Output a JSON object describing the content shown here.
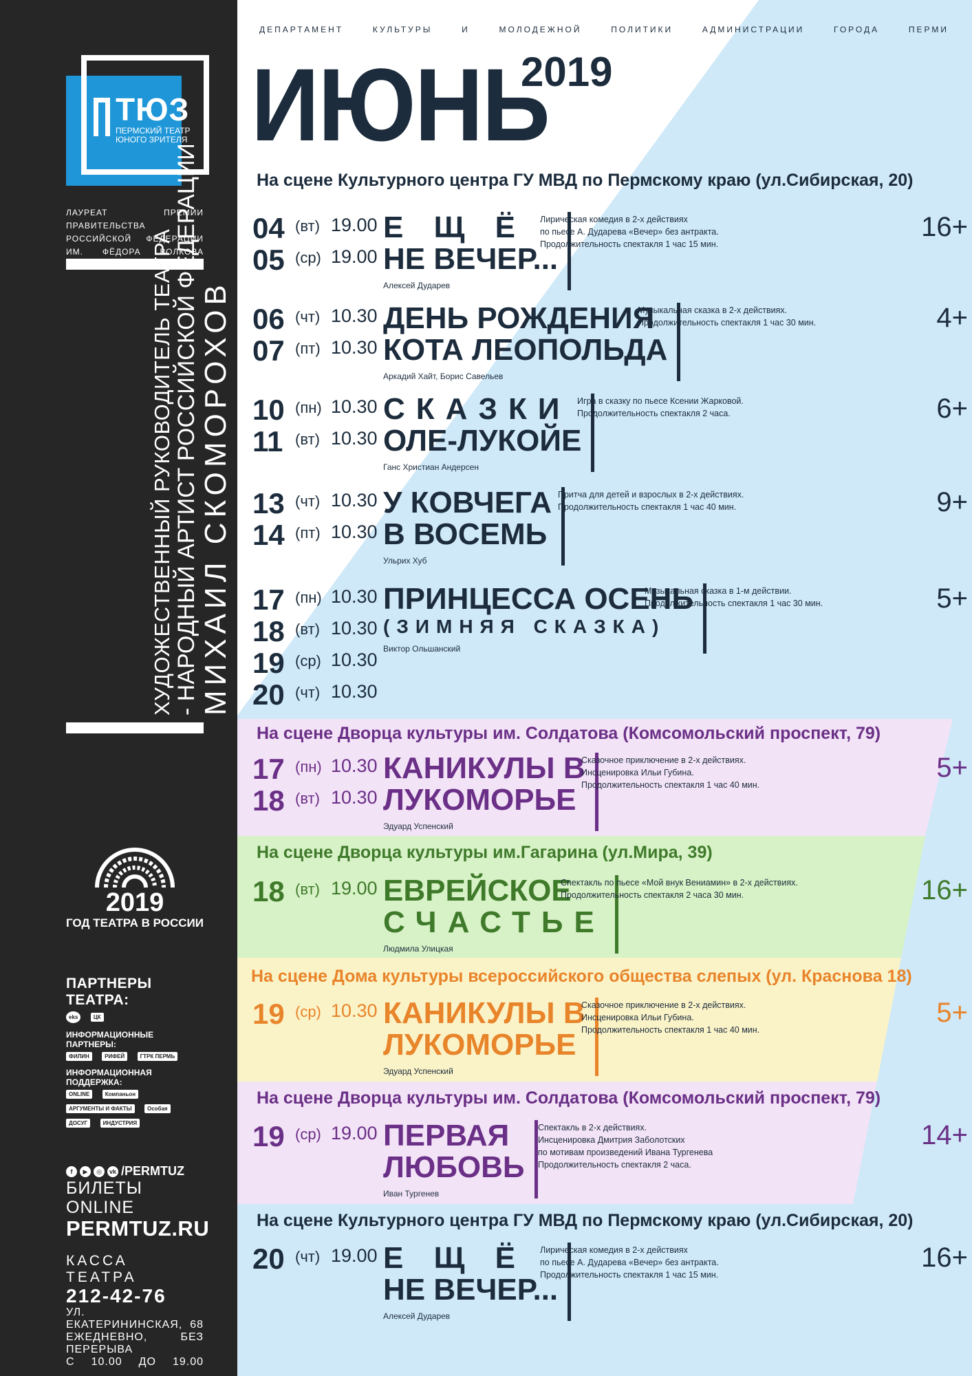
{
  "sidebar": {
    "logo": {
      "name": "ТЮЗ",
      "subtitle": "ПЕРМСКИЙ ТЕАТР ЮНОГО ЗРИТЕЛЯ"
    },
    "laureate": "Лауреат премии правительства Российской Федерации им. Фёдора Волкова",
    "director_line1": "Художественный руководитель театра",
    "director_line2": "- народный артист Российской Федерации",
    "director_name": "Михаил Скоморохов",
    "theatre_year": {
      "year": "2019",
      "text": "ГОД ТЕАТРА В РОССИИ"
    },
    "partners_heading": "ПАРТНЕРЫ ТЕАТРА:",
    "partners": [
      "eks",
      "ЦК"
    ],
    "info_partners_heading": "ИНФОРМАЦИОННЫЕ ПАРТНЕРЫ:",
    "info_partners": [
      "ФИЛИН",
      "РИФЕЙ",
      "ГТРК ПЕРМЬ"
    ],
    "info_support_heading": "ИНФОРМАЦИОННАЯ ПОДДЕРЖКА:",
    "info_support": [
      "ONLINE",
      "Компаньон",
      "АРГУМЕНТЫ И ФАКТЫ",
      "Особая",
      "ДОСУГ",
      "ИНДУСТРИЯ"
    ],
    "social_handle": "/PERMTUZ",
    "tickets": "БИЛЕТЫ ONLINE",
    "site": "PERMTUZ.RU",
    "kassa": "КАССА ТЕАТРА",
    "phone": "212-42-76",
    "address": "ул. Екатерининская, 68",
    "hours1": "ежедневно, без перерыва",
    "hours2": "с 10.00 до 19.00"
  },
  "header": {
    "department": "Департамент культуры и молодежной политики администрации города Перми",
    "month": "ИЮНЬ",
    "year": "2019"
  },
  "colors": {
    "navy": "#1c2c3c",
    "sky": "#cfe9f8",
    "purple": "#6a2f86",
    "green": "#3f7a2b",
    "orange": "#e8842a",
    "lilac_bg": "#f3e3f7",
    "green_bg": "#d7f2c6",
    "yellow_bg": "#fbf3c8"
  },
  "sections": [
    {
      "venue": "На сцене Культурного центра ГУ МВД по Пермскому краю (ул.Сибирская, 20)",
      "shows": [
        {
          "dates": [
            [
              "04",
              "(вт)",
              "19.00"
            ],
            [
              "05",
              "(ср)",
              "19.00"
            ]
          ],
          "title": [
            "Е Щ Ё",
            "НЕ ВЕЧЕР..."
          ],
          "author": "Алексей Дударев",
          "desc": [
            "Лирическая комедия в 2-х действиях",
            "по пьесе А. Дударева «Вечер» без антракта.",
            "Продолжительность спектакля 1 час 15 мин."
          ],
          "age": "16+"
        },
        {
          "dates": [
            [
              "06",
              "(чт)",
              "10.30"
            ],
            [
              "07",
              "(пт)",
              "10.30"
            ]
          ],
          "title": [
            "ДЕНЬ РОЖДЕНИЯ",
            "КОТА ЛЕОПОЛЬДА"
          ],
          "author": "Аркадий Хайт, Борис Савельев",
          "desc": [
            "Музыкальная сказка в 2-х действиях.",
            "Продолжительность спектакля 1 час 30 мин."
          ],
          "age": "4+"
        },
        {
          "dates": [
            [
              "10",
              "(пн)",
              "10.30"
            ],
            [
              "11",
              "(вт)",
              "10.30"
            ]
          ],
          "title": [
            "СКАЗКИ",
            "ОЛЕ-ЛУКОЙЕ"
          ],
          "author": "Ганс Христиан Андерсен",
          "desc": [
            "Игра в сказку по пьесе Ксении Жарковой.",
            "Продолжительность спектакля 2 часа."
          ],
          "age": "6+"
        },
        {
          "dates": [
            [
              "13",
              "(чт)",
              "10.30"
            ],
            [
              "14",
              "(пт)",
              "10.30"
            ]
          ],
          "title": [
            "У КОВЧЕГА",
            "В ВОСЕМЬ"
          ],
          "author": "Ульрих Хуб",
          "desc": [
            "Притча для детей и взрослых в 2-х действиях.",
            "Продолжительность спектакля 1 час 40 мин."
          ],
          "age": "9+"
        },
        {
          "dates": [
            [
              "17",
              "(пн)",
              "10.30"
            ],
            [
              "18",
              "(вт)",
              "10.30"
            ],
            [
              "19",
              "(ср)",
              "10.30"
            ],
            [
              "20",
              "(чт)",
              "10.30"
            ]
          ],
          "title": [
            "ПРИНЦЕССА ОСЕНЬ",
            "(ЗИМНЯЯ СКАЗКА)"
          ],
          "author": "Виктор Ольшанский",
          "desc": [
            "Музыкальная сказка в 1-м действии.",
            "Продолжительность спектакля 1 час 30 мин."
          ],
          "age": "5+"
        }
      ]
    },
    {
      "venue": "На сцене Дворца культуры им. Солдатова (Комсомольский проспект, 79)",
      "shows": [
        {
          "dates": [
            [
              "17",
              "(пн)",
              "10.30"
            ],
            [
              "18",
              "(вт)",
              "10.30"
            ]
          ],
          "title": [
            "КАНИКУЛЫ В",
            "ЛУКОМОРЬЕ"
          ],
          "author": "Эдуард Успенский",
          "desc": [
            "Сказочное приключение в 2-х действиях.",
            "Инсценировка Ильи Губина.",
            "Продолжительность спектакля 1 час 40 мин."
          ],
          "age": "5+"
        }
      ]
    },
    {
      "venue": "На сцене Дворца культуры им.Гагарина (ул.Мира, 39)",
      "shows": [
        {
          "dates": [
            [
              "18",
              "(вт)",
              "19.00"
            ]
          ],
          "title": [
            "ЕВРЕЙСКОЕ",
            "СЧАСТЬЕ"
          ],
          "author": "Людмила Улицкая",
          "desc": [
            "Спектакль по пьесе «Мой внук Вениамин» в 2-х действиях.",
            "Продолжительность спектакля 2 часа 30 мин."
          ],
          "age": "16+"
        }
      ]
    },
    {
      "venue": "На сцене Дома культуры всероссийского общества слепых (ул. Краснова 18)",
      "shows": [
        {
          "dates": [
            [
              "19",
              "(ср)",
              "10.30"
            ]
          ],
          "title": [
            "КАНИКУЛЫ В",
            "ЛУКОМОРЬЕ"
          ],
          "author": "Эдуард Успенский",
          "desc": [
            "Сказочное приключение в 2-х действиях.",
            "Инсценировка Ильи Губина.",
            "Продолжительность спектакля 1 час 40 мин."
          ],
          "age": "5+"
        }
      ]
    },
    {
      "venue": "На сцене Дворца культуры им. Солдатова (Комсомольский проспект, 79)",
      "shows": [
        {
          "dates": [
            [
              "19",
              "(ср)",
              "19.00"
            ]
          ],
          "title": [
            "ПЕРВАЯ",
            "ЛЮБОВЬ"
          ],
          "author": "Иван Тургенев",
          "desc": [
            "Спектакль в 2-х действиях.",
            "Инсценировка Дмитрия Заболотских",
            "по мотивам произведений Ивана Тургенева",
            "Продолжительность спектакля 2 часа."
          ],
          "age": "14+"
        }
      ]
    },
    {
      "venue": "На сцене Культурного центра ГУ МВД по Пермскому краю (ул.Сибирская, 20)",
      "shows": [
        {
          "dates": [
            [
              "20",
              "(чт)",
              "19.00"
            ]
          ],
          "title": [
            "Е Щ Ё",
            "НЕ ВЕЧЕР..."
          ],
          "author": "Алексей Дударев",
          "desc": [
            "Лирическая комедия в 2-х действиях",
            "по пьесе А. Дударева «Вечер» без антракта.",
            "Продолжительность спектакля 1 час 15 мин."
          ],
          "age": "16+"
        }
      ]
    }
  ]
}
